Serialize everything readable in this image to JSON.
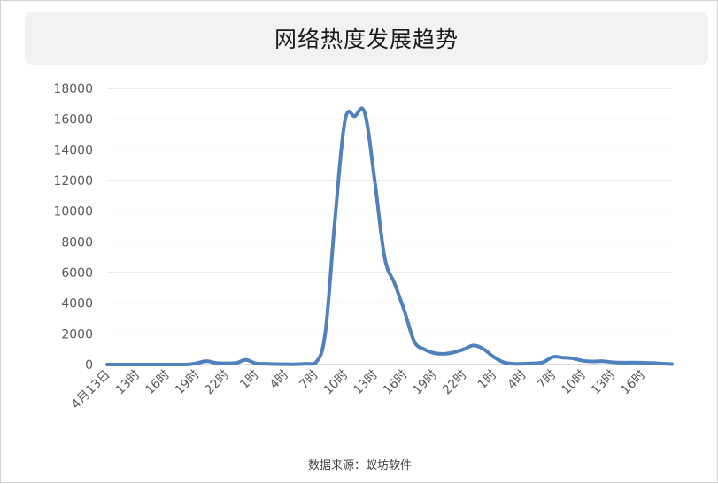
{
  "chart_data": {
    "type": "line",
    "title": "网络热度发展趋势",
    "xlabel": "",
    "ylabel": "",
    "ylim": [
      0,
      18000
    ],
    "yticks": [
      0,
      2000,
      4000,
      6000,
      8000,
      10000,
      12000,
      14000,
      16000,
      18000
    ],
    "grid": true,
    "legend": "none",
    "line_color": "#4f81bd",
    "x_tick_labels": [
      "4月13日",
      "13时",
      "16时",
      "19时",
      "22时",
      "1时",
      "4时",
      "7时",
      "10时",
      "13时",
      "16时",
      "19时",
      "22时",
      "1时",
      "4时",
      "7时",
      "10时",
      "13时",
      "16时"
    ],
    "x": [
      "4月13日 10时",
      "11时",
      "12时",
      "13时",
      "14时",
      "15时",
      "16时",
      "17时",
      "18时",
      "19时",
      "20时",
      "21时",
      "22时",
      "23时",
      "0时",
      "1时",
      "2时",
      "3时",
      "4时",
      "5时",
      "6时",
      "7时",
      "8时",
      "9时",
      "10时",
      "11时",
      "12时",
      "13时",
      "14时",
      "15时",
      "16时",
      "17时",
      "18时",
      "19时",
      "20时",
      "21时",
      "22时",
      "23时",
      "0时",
      "1时",
      "2时",
      "3时",
      "4时",
      "5时",
      "6时",
      "7时",
      "8时",
      "9时",
      "10时",
      "11时",
      "12时",
      "13时",
      "14时",
      "15时",
      "16时",
      "17时",
      "18时",
      "19时"
    ],
    "series": [
      {
        "values": [
          0,
          0,
          0,
          0,
          0,
          0,
          0,
          0,
          0,
          80,
          220,
          100,
          80,
          100,
          300,
          80,
          50,
          30,
          20,
          20,
          50,
          80,
          2000,
          9500,
          15900,
          16200,
          16400,
          12000,
          7000,
          5300,
          3500,
          1500,
          1000,
          750,
          700,
          800,
          1000,
          1250,
          1000,
          500,
          150,
          50,
          50,
          80,
          150,
          500,
          450,
          400,
          250,
          200,
          220,
          150,
          120,
          130,
          120,
          100,
          60,
          30
        ]
      }
    ]
  },
  "source": "数据来源：蚁坊软件"
}
